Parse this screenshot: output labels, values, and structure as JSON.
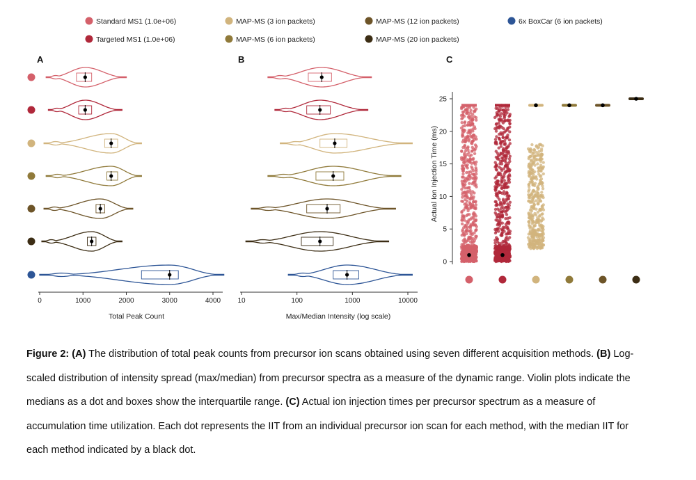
{
  "legend": [
    {
      "label": "Standard MS1 (1.0e+06)",
      "color": "#d4606a"
    },
    {
      "label": "Targeted MS1 (1.0e+06)",
      "color": "#b0283a"
    },
    {
      "label": "MAP-MS (3 ion packets)",
      "color": "#d1b47d"
    },
    {
      "label": "MAP-MS (6 ion packets)",
      "color": "#907a3a"
    },
    {
      "label": "MAP-MS (12 ion packets)",
      "color": "#6d5428"
    },
    {
      "label": "MAP-MS (20 ion packets)",
      "color": "#3c2d14"
    },
    {
      "label": "6x BoxCar (6 ion packets)",
      "color": "#2d5596"
    }
  ],
  "chart_data": [
    {
      "panel": "A",
      "type": "violin",
      "xlabel": "Total Peak Count",
      "xlim": [
        0,
        4300
      ],
      "xticks": [
        "0",
        "1000",
        "2000",
        "3000",
        "4000"
      ],
      "series": [
        {
          "name": "Standard MS1 (1.0e+06)",
          "median": 1050,
          "q1": 850,
          "q3": 1200,
          "min": 150,
          "max": 2000
        },
        {
          "name": "Targeted MS1 (1.0e+06)",
          "median": 1050,
          "q1": 900,
          "q3": 1200,
          "min": 200,
          "max": 1900
        },
        {
          "name": "MAP-MS (3 ion packets)",
          "median": 1650,
          "q1": 1500,
          "q3": 1800,
          "min": 100,
          "max": 2350
        },
        {
          "name": "MAP-MS (6 ion packets)",
          "median": 1650,
          "q1": 1550,
          "q3": 1800,
          "min": 150,
          "max": 2350
        },
        {
          "name": "MAP-MS (12 ion packets)",
          "median": 1400,
          "q1": 1300,
          "q3": 1500,
          "min": 100,
          "max": 2150
        },
        {
          "name": "MAP-MS (20 ion packets)",
          "median": 1200,
          "q1": 1100,
          "q3": 1300,
          "min": 50,
          "max": 1900
        },
        {
          "name": "6x BoxCar (6 ion packets)",
          "median": 3000,
          "q1": 2350,
          "q3": 3200,
          "min": 0,
          "max": 4250
        }
      ]
    },
    {
      "panel": "B",
      "type": "violin",
      "xlabel": "Max/Median Intensity (log scale)",
      "log_scale": true,
      "xlim": [
        10,
        15000
      ],
      "xticks": [
        "10",
        "100",
        "1000",
        "10000"
      ],
      "series": [
        {
          "name": "Standard MS1 (1.0e+06)",
          "median": 280,
          "q1": 160,
          "q3": 420,
          "min": 30,
          "max": 2200
        },
        {
          "name": "Targeted MS1 (1.0e+06)",
          "median": 260,
          "q1": 150,
          "q3": 400,
          "min": 40,
          "max": 1900
        },
        {
          "name": "MAP-MS (3 ion packets)",
          "median": 480,
          "q1": 260,
          "q3": 800,
          "min": 50,
          "max": 12000
        },
        {
          "name": "MAP-MS (6 ion packets)",
          "median": 450,
          "q1": 220,
          "q3": 700,
          "min": 30,
          "max": 7500
        },
        {
          "name": "MAP-MS (12 ion packets)",
          "median": 350,
          "q1": 150,
          "q3": 600,
          "min": 15,
          "max": 6000
        },
        {
          "name": "MAP-MS (20 ion packets)",
          "median": 260,
          "q1": 120,
          "q3": 450,
          "min": 12,
          "max": 4500
        },
        {
          "name": "6x BoxCar (6 ion packets)",
          "median": 800,
          "q1": 450,
          "q3": 1300,
          "min": 70,
          "max": 12000
        }
      ]
    },
    {
      "panel": "C",
      "type": "scatter",
      "ylabel": "Actual Ion Injection Time (ms)",
      "ylim": [
        0,
        27
      ],
      "yticks": [
        "0",
        "5",
        "10",
        "15",
        "20",
        "25"
      ],
      "series": [
        {
          "name": "Standard MS1 (1.0e+06)",
          "median": 1,
          "range": [
            0,
            24
          ]
        },
        {
          "name": "Targeted MS1 (1.0e+06)",
          "median": 1,
          "range": [
            0,
            24
          ]
        },
        {
          "name": "MAP-MS (3 ion packets)",
          "median": 24,
          "range": [
            2,
            24
          ]
        },
        {
          "name": "MAP-MS (6 ion packets)",
          "median": 24,
          "range": [
            24,
            24
          ]
        },
        {
          "name": "MAP-MS (12 ion packets)",
          "median": 24,
          "range": [
            24,
            24
          ]
        },
        {
          "name": "MAP-MS (20 ion packets)",
          "median": 25,
          "range": [
            25,
            25
          ]
        }
      ]
    }
  ],
  "panel_labels": [
    "A",
    "B",
    "C"
  ],
  "caption": {
    "lead": "Figure 2:",
    "parts": [
      {
        "bold": "(A)",
        "text": " The distribution of total peak counts from precursor ion scans obtained using seven different acquisition methods. "
      },
      {
        "bold": "(B)",
        "text": " Log-scaled distribution of intensity spread (max/median) from precursor spectra as a measure of the dynamic range. Violin plots indicate the medians as a dot and boxes show the interquartile range. "
      },
      {
        "bold": "(C)",
        "text": " Actual ion injection times per precursor spectrum as a measure of accumulation time utilization. Each dot represents the IIT from an individual precursor ion scan for each method, with the median IIT for each method indicated by a black dot."
      }
    ]
  }
}
